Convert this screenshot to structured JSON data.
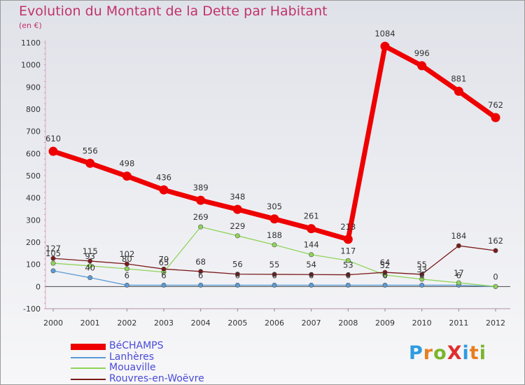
{
  "title": "Evolution du Montant de la Dette par Habitant",
  "subtitle": "(en €)",
  "logo": {
    "text": "ProXiti",
    "letters": [
      {
        "ch": "P",
        "color": "#2e9be0"
      },
      {
        "ch": "r",
        "color": "#e97d1f"
      },
      {
        "ch": "o",
        "color": "#7ab62c"
      },
      {
        "ch": "X",
        "color": "#e02d2d"
      },
      {
        "ch": "i",
        "color": "#2e9be0"
      },
      {
        "ch": "t",
        "color": "#e97d1f"
      },
      {
        "ch": "i",
        "color": "#7ab62c"
      }
    ]
  },
  "chart_data": {
    "type": "line",
    "x": [
      2000,
      2001,
      2002,
      2003,
      2004,
      2005,
      2006,
      2007,
      2008,
      2009,
      2010,
      2011,
      2012
    ],
    "ylim": [
      -100,
      1100
    ],
    "yticks": [
      -100,
      0,
      100,
      200,
      300,
      400,
      500,
      600,
      700,
      800,
      900,
      1000,
      1100
    ],
    "grid": false,
    "legend_position": "bottom-left",
    "series": [
      {
        "name": "BéCHAMPS",
        "color": "#ee0000",
        "values": [
          610,
          556,
          498,
          436,
          389,
          348,
          305,
          261,
          213,
          1084,
          996,
          881,
          762
        ],
        "labels": [
          "610",
          "556",
          "498",
          "436",
          "389",
          "348",
          "305",
          "261",
          "213",
          "1084",
          "996",
          "881",
          "762"
        ]
      },
      {
        "name": "Lanhères",
        "color": "#5b9bd5",
        "values": [
          71,
          40,
          6,
          6,
          6,
          6,
          6,
          6,
          6,
          6,
          6,
          6,
          0
        ],
        "labels": [
          "",
          "40",
          "6",
          "6",
          "6",
          "6",
          "6",
          "6",
          "6",
          "6",
          "6",
          "6",
          "0"
        ]
      },
      {
        "name": "Mouaville",
        "color": "#8fd45a",
        "values": [
          105,
          93,
          80,
          65,
          269,
          229,
          188,
          144,
          117,
          52,
          33,
          17,
          0
        ],
        "labels": [
          "105",
          "93",
          "80",
          "65",
          "269",
          "229",
          "188",
          "144",
          "117",
          "52",
          "33",
          "17",
          ""
        ]
      },
      {
        "name": "Rouvres-en-Woëvre",
        "color": "#7a1a1a",
        "values": [
          127,
          115,
          102,
          79,
          68,
          56,
          55,
          54,
          53,
          64,
          55,
          184,
          162
        ],
        "labels": [
          "127",
          "115",
          "102",
          "79",
          "68",
          "56",
          "55",
          "54",
          "53",
          "64",
          "55",
          "184",
          "162"
        ]
      }
    ]
  }
}
